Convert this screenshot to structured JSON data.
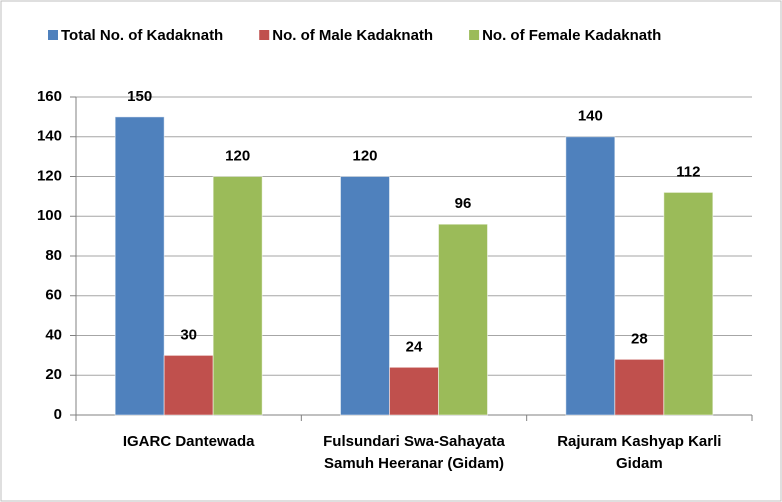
{
  "chart_data": {
    "type": "bar",
    "categories": [
      "IGARC Dantewada",
      "Fulsundari Swa-Sahayata Samuh Heeranar (Gidam)",
      "Rajuram Kashyap Karli Gidam"
    ],
    "series": [
      {
        "name": "Total No. of Kadaknath",
        "color": "#4f81bd",
        "values": [
          150,
          120,
          140
        ]
      },
      {
        "name": "No. of Male Kadaknath",
        "color": "#c0504d",
        "values": [
          30,
          24,
          28
        ]
      },
      {
        "name": "No. of Female Kadaknath",
        "color": "#9bbb59",
        "values": [
          120,
          96,
          112
        ]
      }
    ],
    "ylim": [
      0,
      160
    ],
    "yticks": [
      0,
      20,
      40,
      60,
      80,
      100,
      120,
      140,
      160
    ],
    "grid": true,
    "legend": "top"
  }
}
